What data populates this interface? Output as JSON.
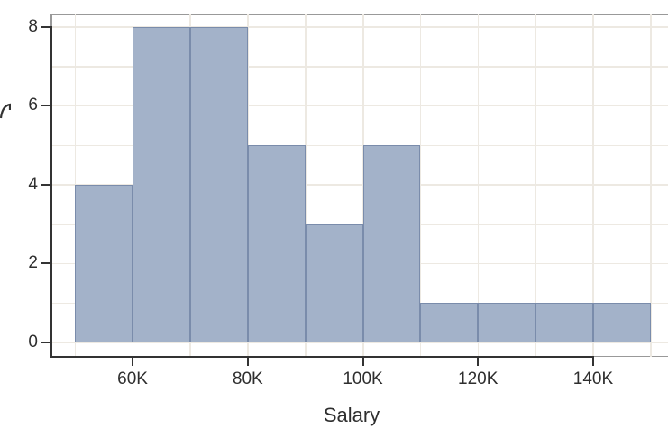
{
  "chart_data": {
    "type": "bar",
    "variant": "histogram",
    "title": "",
    "xlabel": "Salary",
    "ylabel": "",
    "bin_edges_k": [
      50,
      60,
      70,
      80,
      90,
      100,
      110,
      120,
      130,
      140,
      150
    ],
    "values": [
      4,
      8,
      8,
      5,
      3,
      5,
      1,
      1,
      1,
      1
    ],
    "x_tick_values_k": [
      60,
      80,
      100,
      120,
      140
    ],
    "x_tick_labels": [
      "60K",
      "80K",
      "100K",
      "120K",
      "140K"
    ],
    "y_tick_values": [
      0,
      2,
      4,
      6,
      8
    ],
    "y_tick_labels": [
      "0",
      "2",
      "4",
      "6",
      "8"
    ],
    "xlim_k": [
      45.9,
      153.0
    ],
    "ylim": [
      -0.37,
      8.34
    ],
    "grid": true,
    "x_grid_step_k": 10,
    "y_grid_step": 1,
    "legend": "none"
  },
  "style": {
    "bar_fill": "#a3b2c9",
    "bar_edge": "#7a8cab",
    "grid_color": "#ede9e2",
    "spine_color": "#333333",
    "panel_border_color": "#999999",
    "text_color": "#2e2e2e",
    "background": "#ffffff"
  }
}
